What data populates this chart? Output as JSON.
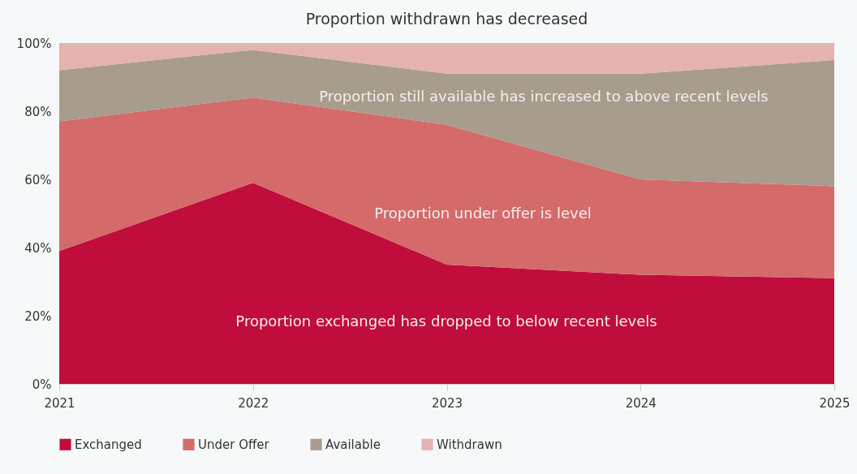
{
  "chart_data": {
    "type": "area",
    "stacked": true,
    "title": "Proportion withdrawn has decreased",
    "categories": [
      "2021",
      "2022",
      "2023",
      "2024",
      "2025"
    ],
    "series": [
      {
        "name": "Exchanged",
        "color": "#c00d3c",
        "values": [
          39,
          59,
          35,
          32,
          31
        ]
      },
      {
        "name": "Under Offer",
        "color": "#d46a6a",
        "values": [
          38,
          25,
          41,
          28,
          27
        ]
      },
      {
        "name": "Available",
        "color": "#a89c8c",
        "values": [
          15,
          14,
          15,
          31,
          37
        ]
      },
      {
        "name": "Withdrawn",
        "color": "#e5b2b0",
        "values": [
          8,
          2,
          9,
          9,
          5
        ]
      }
    ],
    "ylim": [
      0,
      100
    ],
    "yticks": [
      {
        "value": 0,
        "label": "0%"
      },
      {
        "value": 20,
        "label": "20%"
      },
      {
        "value": 40,
        "label": "40%"
      },
      {
        "value": 60,
        "label": "60%"
      },
      {
        "value": 80,
        "label": "80%"
      },
      {
        "value": 100,
        "label": "100%"
      }
    ],
    "legend": "bottom",
    "grid": false,
    "annotations": [
      "Proportion still available has increased to above recent levels",
      "Proportion under offer is level",
      "Proportion exchanged has dropped to below recent levels"
    ]
  }
}
